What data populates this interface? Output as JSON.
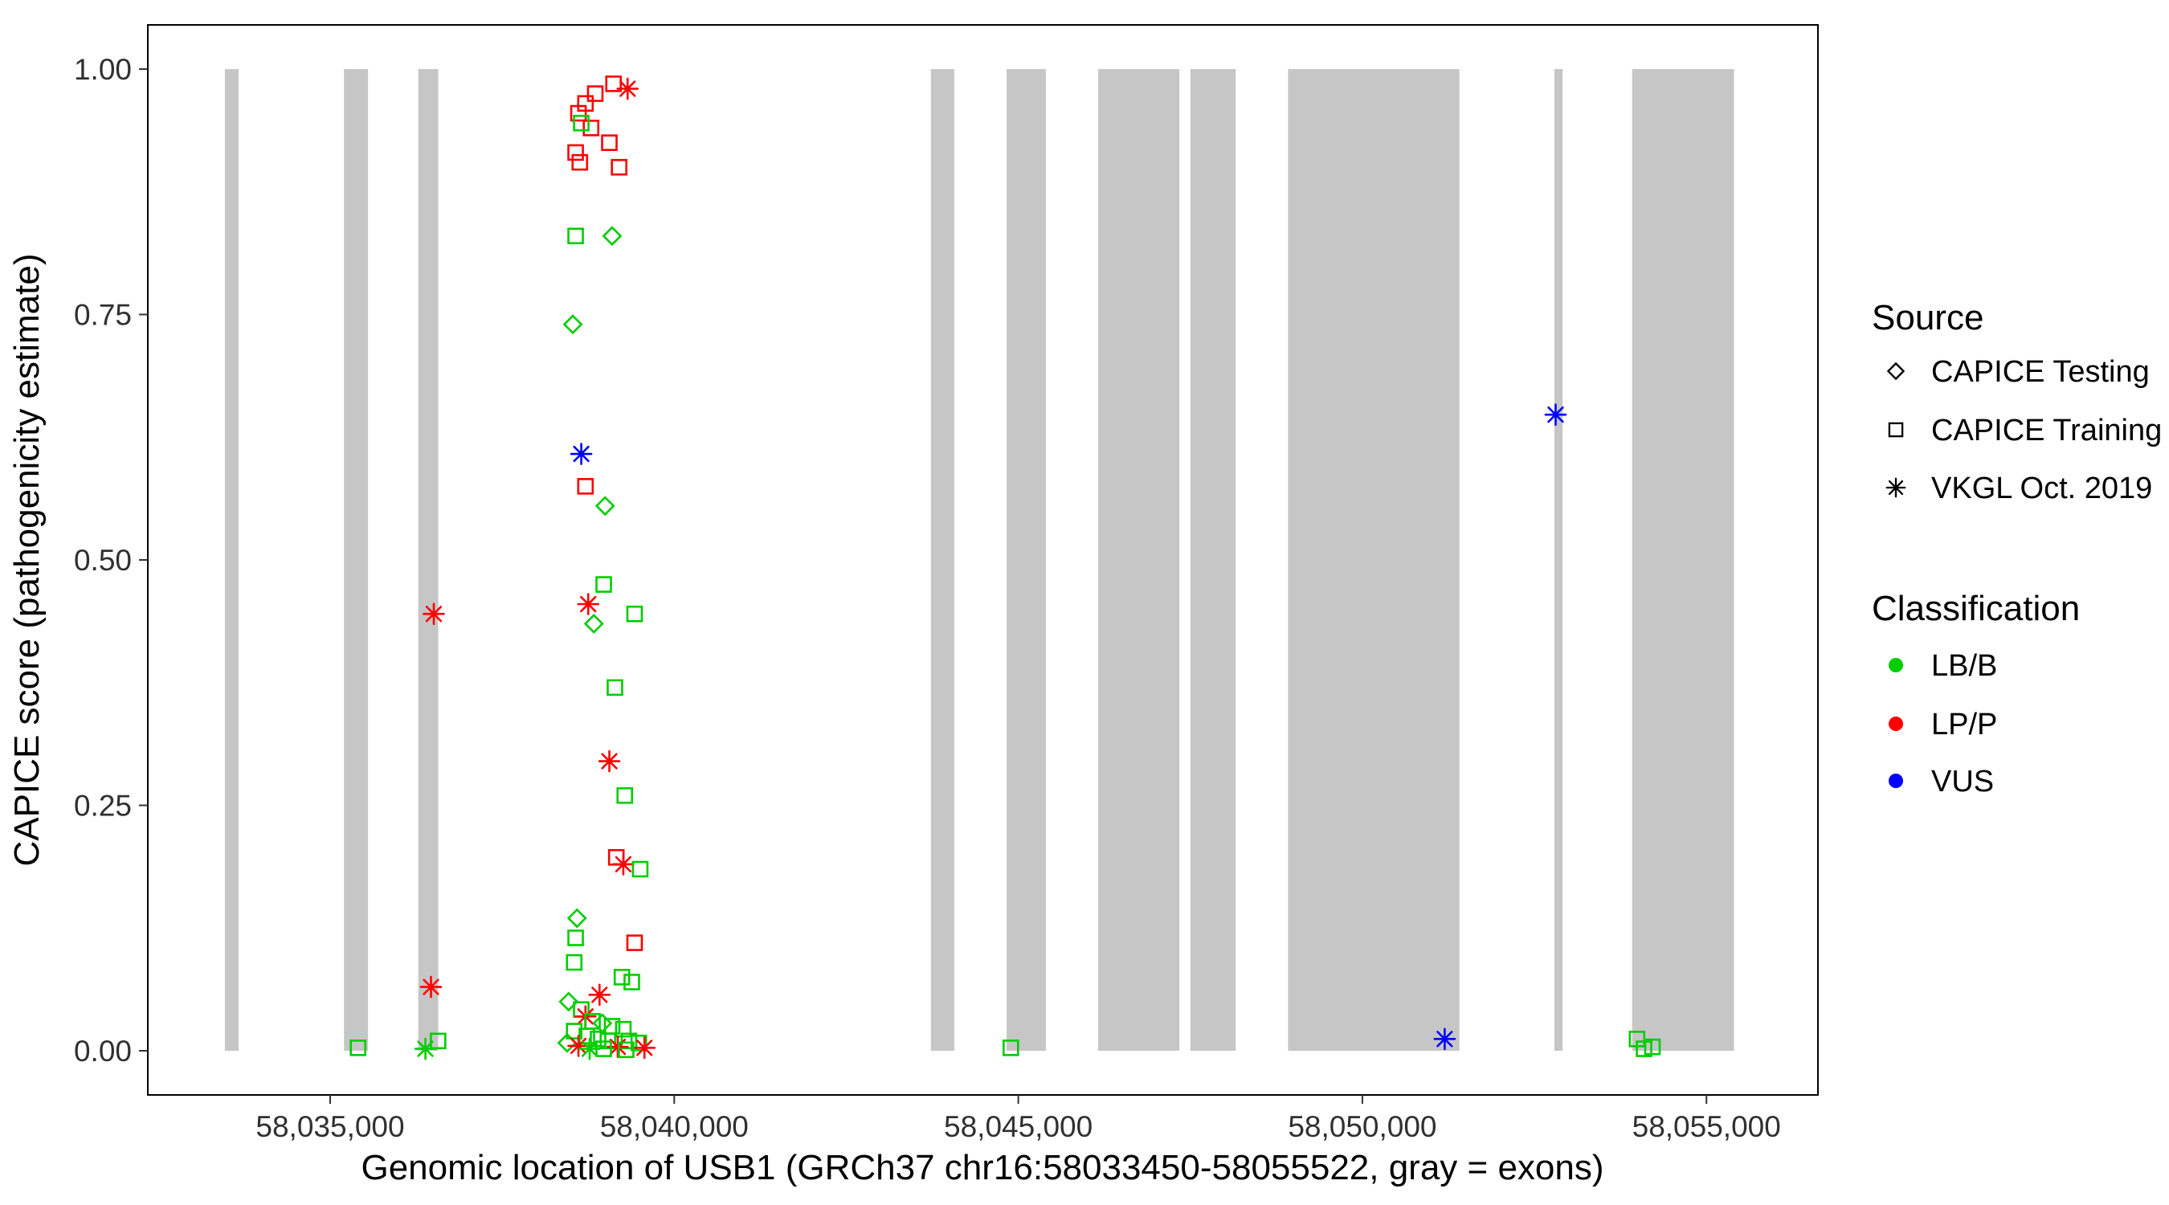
{
  "chart_data": {
    "type": "scatter",
    "title": "",
    "xlabel": "Genomic location of USB1 (GRCh37 chr16:58033450-58055522, gray = exons)",
    "ylabel": "CAPICE score (pathogenicity estimate)",
    "xlim": [
      58032350,
      58056620
    ],
    "ylim": [
      -0.045,
      1.045
    ],
    "x_ticks": [
      {
        "value": 58035000,
        "label": "58,035,000"
      },
      {
        "value": 58040000,
        "label": "58,040,000"
      },
      {
        "value": 58045000,
        "label": "58,045,000"
      },
      {
        "value": 58050000,
        "label": "58,050,000"
      },
      {
        "value": 58055000,
        "label": "58,055,000"
      }
    ],
    "y_ticks": [
      {
        "value": 0.0,
        "label": "0.00"
      },
      {
        "value": 0.25,
        "label": "0.25"
      },
      {
        "value": 0.5,
        "label": "0.50"
      },
      {
        "value": 0.75,
        "label": "0.75"
      },
      {
        "value": 1.0,
        "label": "1.00"
      }
    ],
    "colors": {
      "LB/B": "#00CD00",
      "LP/P": "#FF0000",
      "VUS": "#0000FF",
      "exon": "#C6C6C6"
    },
    "shapes": {
      "testing": "diamond",
      "training": "square",
      "vkgl": "asterisk"
    },
    "exons_gray": [
      [
        58033470,
        58033670
      ],
      [
        58035200,
        58035550
      ],
      [
        58036280,
        58036570
      ],
      [
        58043730,
        58044070
      ],
      [
        58044830,
        58045400
      ],
      [
        58046160,
        58047340
      ],
      [
        58047500,
        58048160
      ],
      [
        58048920,
        58051410
      ],
      [
        58052790,
        58052910
      ],
      [
        58053920,
        58055400
      ]
    ],
    "legend": {
      "source": {
        "title": "Source",
        "items": [
          {
            "label": "CAPICE Testing",
            "shape": "diamond"
          },
          {
            "label": "CAPICE Training",
            "shape": "square"
          },
          {
            "label": "VKGL Oct. 2019",
            "shape": "asterisk"
          }
        ]
      },
      "classification": {
        "title": "Classification",
        "items": [
          {
            "label": "LB/B",
            "class": "LB/B"
          },
          {
            "label": "LP/P",
            "class": "LP/P"
          },
          {
            "label": "VUS",
            "class": "VUS"
          }
        ]
      }
    },
    "points": [
      [
        58038710,
        0.965,
        "training",
        "LP/P"
      ],
      [
        58038852,
        0.975,
        "training",
        "LP/P"
      ],
      [
        58039118,
        0.985,
        "training",
        "LP/P"
      ],
      [
        58038608,
        0.955,
        "training",
        "LP/P"
      ],
      [
        58038791,
        0.94,
        "training",
        "LP/P"
      ],
      [
        58038567,
        0.915,
        "training",
        "LP/P"
      ],
      [
        58038628,
        0.905,
        "training",
        "LP/P"
      ],
      [
        58039057,
        0.925,
        "training",
        "LP/P"
      ],
      [
        58039199,
        0.9,
        "training",
        "LP/P"
      ],
      [
        58039322,
        0.98,
        "vkgl",
        "LP/P"
      ],
      [
        58038649,
        0.945,
        "training",
        "LB/B"
      ],
      [
        58038567,
        0.83,
        "training",
        "LB/B"
      ],
      [
        58039097,
        0.83,
        "testing",
        "LB/B"
      ],
      [
        58038526,
        0.74,
        "testing",
        "LB/B"
      ],
      [
        58038649,
        0.608,
        "vkgl",
        "VUS"
      ],
      [
        58038710,
        0.575,
        "training",
        "LP/P"
      ],
      [
        58038995,
        0.555,
        "testing",
        "LB/B"
      ],
      [
        58038975,
        0.475,
        "training",
        "LB/B"
      ],
      [
        58038750,
        0.455,
        "vkgl",
        "LP/P"
      ],
      [
        58036506,
        0.445,
        "vkgl",
        "LP/P"
      ],
      [
        58038832,
        0.435,
        "testing",
        "LB/B"
      ],
      [
        58039424,
        0.445,
        "training",
        "LB/B"
      ],
      [
        58039138,
        0.37,
        "training",
        "LB/B"
      ],
      [
        58039057,
        0.295,
        "vkgl",
        "LP/P"
      ],
      [
        58039281,
        0.26,
        "training",
        "LB/B"
      ],
      [
        58039158,
        0.197,
        "training",
        "LP/P"
      ],
      [
        58039260,
        0.19,
        "vkgl",
        "LP/P"
      ],
      [
        58039505,
        0.185,
        "training",
        "LB/B"
      ],
      [
        58038587,
        0.135,
        "testing",
        "LB/B"
      ],
      [
        58038567,
        0.115,
        "training",
        "LB/B"
      ],
      [
        58039424,
        0.11,
        "training",
        "LP/P"
      ],
      [
        58038546,
        0.09,
        "training",
        "LB/B"
      ],
      [
        58039240,
        0.075,
        "training",
        "LB/B"
      ],
      [
        58039383,
        0.07,
        "training",
        "LB/B"
      ],
      [
        58036465,
        0.065,
        "vkgl",
        "LP/P"
      ],
      [
        58038914,
        0.057,
        "vkgl",
        "LP/P"
      ],
      [
        58038465,
        0.05,
        "testing",
        "LB/B"
      ],
      [
        58038649,
        0.042,
        "training",
        "LB/B"
      ],
      [
        58038710,
        0.035,
        "vkgl",
        "LP/P"
      ],
      [
        58038812,
        0.03,
        "training",
        "LB/B"
      ],
      [
        58038955,
        0.028,
        "testing",
        "LB/B"
      ],
      [
        58039097,
        0.025,
        "training",
        "LB/B"
      ],
      [
        58039260,
        0.022,
        "training",
        "LB/B"
      ],
      [
        58038546,
        0.02,
        "training",
        "LB/B"
      ],
      [
        58038730,
        0.015,
        "training",
        "LB/B"
      ],
      [
        58038893,
        0.012,
        "training",
        "LB/B"
      ],
      [
        58039036,
        0.01,
        "training",
        "LB/B"
      ],
      [
        58039342,
        0.01,
        "training",
        "LB/B"
      ],
      [
        58039485,
        0.008,
        "training",
        "LB/B"
      ],
      [
        58038444,
        0.008,
        "testing",
        "LB/B"
      ],
      [
        58038608,
        0.005,
        "vkgl",
        "LP/P"
      ],
      [
        58039179,
        0.004,
        "vkgl",
        "LP/P"
      ],
      [
        58039567,
        0.003,
        "vkgl",
        "LP/P"
      ],
      [
        58038771,
        0.002,
        "vkgl",
        "LB/B"
      ],
      [
        58038975,
        0.002,
        "training",
        "LB/B"
      ],
      [
        58039301,
        0.001,
        "training",
        "LB/B"
      ],
      [
        58035405,
        0.003,
        "training",
        "LB/B"
      ],
      [
        58036384,
        0.002,
        "vkgl",
        "LB/B"
      ],
      [
        58036568,
        0.01,
        "training",
        "LB/B"
      ],
      [
        58044891,
        0.003,
        "training",
        "LB/B"
      ],
      [
        58051196,
        0.012,
        "vkgl",
        "VUS"
      ],
      [
        58052808,
        0.648,
        "vkgl",
        "VUS"
      ],
      [
        58053991,
        0.012,
        "training",
        "LB/B"
      ],
      [
        58054215,
        0.004,
        "training",
        "LB/B"
      ],
      [
        58054093,
        0.002,
        "training",
        "LB/B"
      ]
    ]
  }
}
